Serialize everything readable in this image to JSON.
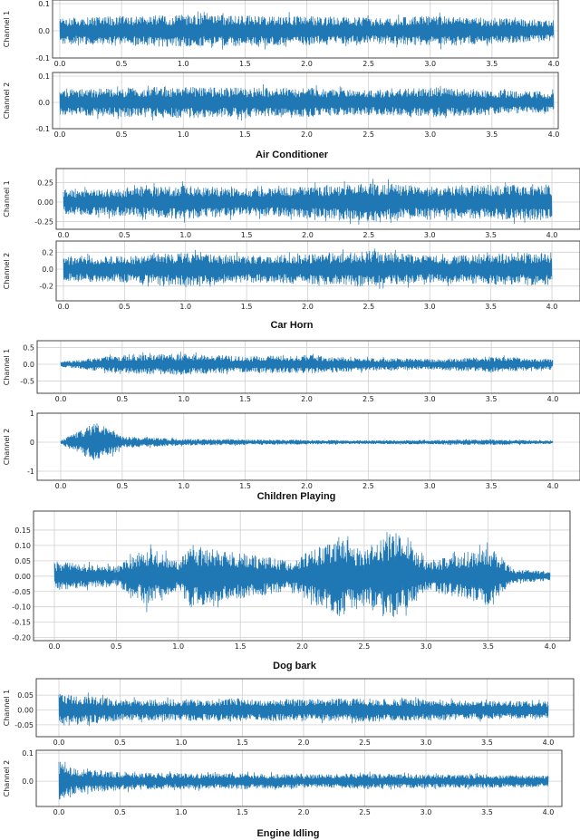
{
  "chart_data": [
    {
      "type": "line",
      "xlim": [
        0,
        4.0
      ],
      "ylim": [
        -0.1,
        0.1
      ],
      "grid": true,
      "ylabel": "Channel 1",
      "yticks": [
        -0.1,
        0.0,
        0.1
      ],
      "yticklabels": [
        "-0.1",
        "0.0",
        "0.1"
      ],
      "xticks": [
        0.0,
        0.5,
        1.0,
        1.5,
        2.0,
        2.5,
        3.0,
        3.5,
        4.0
      ],
      "xticklabels": [
        "0.0",
        "0.5",
        "1.0",
        "1.5",
        "2.0",
        "2.5",
        "3.0",
        "3.5",
        "4.0"
      ],
      "series": [
        {
          "envelope_x": [
            0,
            0.5,
            1.0,
            1.5,
            2.0,
            2.5,
            3.0,
            3.5,
            4.0
          ],
          "envelope_y": [
            0.06,
            0.07,
            0.075,
            0.07,
            0.07,
            0.06,
            0.07,
            0.06,
            0.05
          ]
        }
      ]
    },
    {
      "type": "line",
      "xlim": [
        0,
        4.0
      ],
      "ylim": [
        -0.1,
        0.1
      ],
      "grid": true,
      "ylabel": "Channel 2",
      "yticks": [
        -0.1,
        0.0,
        0.1
      ],
      "yticklabels": [
        "-0.1",
        "0.0",
        "0.1"
      ],
      "xticks": [
        0.0,
        0.5,
        1.0,
        1.5,
        2.0,
        2.5,
        3.0,
        3.5,
        4.0
      ],
      "xticklabels": [
        "0.0",
        "0.5",
        "1.0",
        "1.5",
        "2.0",
        "2.5",
        "3.0",
        "3.5",
        "4.0"
      ],
      "series": [
        {
          "envelope_x": [
            0,
            0.5,
            1.0,
            1.5,
            2.0,
            2.5,
            3.0,
            3.5,
            4.0
          ],
          "envelope_y": [
            0.06,
            0.07,
            0.075,
            0.07,
            0.07,
            0.06,
            0.07,
            0.06,
            0.05
          ]
        }
      ]
    },
    {
      "type": "line",
      "xlim": [
        0,
        4.0
      ],
      "ylim": [
        -0.35,
        0.35
      ],
      "grid": true,
      "ylabel": "Channel 1",
      "yticks": [
        -0.25,
        0.0,
        0.25
      ],
      "yticklabels": [
        "-0.25",
        "0.00",
        "0.25"
      ],
      "xticks": [
        0.0,
        0.5,
        1.0,
        1.5,
        2.0,
        2.5,
        3.0,
        3.5,
        4.0
      ],
      "xticklabels": [
        "0.0",
        "0.5",
        "1.0",
        "1.5",
        "2.0",
        "2.5",
        "3.0",
        "3.5",
        "4.0"
      ],
      "series": [
        {
          "envelope_x": [
            0,
            0.5,
            1.0,
            1.5,
            2.0,
            2.5,
            3.0,
            3.5,
            4.0
          ],
          "envelope_y": [
            0.2,
            0.22,
            0.28,
            0.22,
            0.25,
            0.32,
            0.25,
            0.28,
            0.3
          ]
        }
      ]
    },
    {
      "type": "line",
      "xlim": [
        0,
        4.0
      ],
      "ylim": [
        -0.3,
        0.3
      ],
      "grid": true,
      "ylabel": "Channel 2",
      "yticks": [
        -0.2,
        0.0,
        0.2
      ],
      "yticklabels": [
        "-0.2",
        "0.0",
        "0.2"
      ],
      "xticks": [
        0.0,
        0.5,
        1.0,
        1.5,
        2.0,
        2.5,
        3.0,
        3.5,
        4.0
      ],
      "xticklabels": [
        "0.0",
        "0.5",
        "1.0",
        "1.5",
        "2.0",
        "2.5",
        "3.0",
        "3.5",
        "4.0"
      ],
      "series": [
        {
          "envelope_x": [
            0,
            0.5,
            1.0,
            1.5,
            2.0,
            2.5,
            3.0,
            3.5,
            4.0
          ],
          "envelope_y": [
            0.18,
            0.2,
            0.25,
            0.2,
            0.22,
            0.27,
            0.2,
            0.23,
            0.25
          ]
        }
      ]
    },
    {
      "type": "line",
      "xlim": [
        0,
        4.0
      ],
      "ylim": [
        -0.7,
        0.7
      ],
      "grid": true,
      "ylabel": "Channel 1",
      "yticks": [
        -0.5,
        0.0,
        0.5
      ],
      "yticklabels": [
        "-0.5",
        "0.0",
        "0.5"
      ],
      "xticks": [
        0.0,
        0.5,
        1.0,
        1.5,
        2.0,
        2.5,
        3.0,
        3.5,
        4.0
      ],
      "xticklabels": [
        "0.0",
        "0.5",
        "1.0",
        "1.5",
        "2.0",
        "2.5",
        "3.0",
        "3.5",
        "4.0"
      ],
      "series": [
        {
          "envelope_x": [
            0,
            0.5,
            1.0,
            1.5,
            2.0,
            2.5,
            3.0,
            3.5,
            4.0
          ],
          "envelope_y": [
            0.1,
            0.35,
            0.4,
            0.3,
            0.35,
            0.25,
            0.2,
            0.3,
            0.2
          ]
        }
      ]
    },
    {
      "type": "line",
      "xlim": [
        0,
        4.0
      ],
      "ylim": [
        -1.0,
        1.0
      ],
      "grid": true,
      "ylabel": "Channel 2",
      "yticks": [
        -1,
        0,
        1
      ],
      "yticklabels": [
        "-1",
        "0",
        "1"
      ],
      "xticks": [
        0.0,
        0.5,
        1.0,
        1.5,
        2.0,
        2.5,
        3.0,
        3.5,
        4.0
      ],
      "xticklabels": [
        "0.0",
        "0.5",
        "1.0",
        "1.5",
        "2.0",
        "2.5",
        "3.0",
        "3.5",
        "4.0"
      ],
      "series": [
        {
          "envelope_x": [
            0,
            0.3,
            0.5,
            1.0,
            1.5,
            2.0,
            2.5,
            3.0,
            3.5,
            4.0
          ],
          "envelope_y": [
            0.08,
            0.9,
            0.25,
            0.15,
            0.12,
            0.1,
            0.08,
            0.1,
            0.12,
            0.07
          ]
        }
      ]
    },
    {
      "type": "line",
      "xlim": [
        0,
        4.0
      ],
      "ylim": [
        -0.21,
        0.2
      ],
      "grid": true,
      "ylabel": "",
      "yticks": [
        -0.2,
        -0.15,
        -0.1,
        -0.05,
        0.0,
        0.05,
        0.1,
        0.15
      ],
      "yticklabels": [
        "-0.20",
        "-0.15",
        "-0.10",
        "-0.05",
        "0.00",
        "0.05",
        "0.10",
        "0.15"
      ],
      "xticks": [
        0.0,
        0.5,
        1.0,
        1.5,
        2.0,
        2.5,
        3.0,
        3.5,
        4.0
      ],
      "xticklabels": [
        "0.0",
        "0.5",
        "1.0",
        "1.5",
        "2.0",
        "2.5",
        "3.0",
        "3.5",
        "4.0"
      ],
      "series": [
        {
          "envelope_x": [
            0,
            0.5,
            0.75,
            1.0,
            1.1,
            1.4,
            1.6,
            1.9,
            2.3,
            2.5,
            2.6,
            2.75,
            3.0,
            3.3,
            3.5,
            3.7,
            4.0
          ],
          "envelope_y": [
            0.06,
            0.04,
            0.12,
            0.06,
            0.13,
            0.1,
            0.09,
            0.06,
            0.17,
            0.1,
            0.16,
            0.18,
            0.06,
            0.09,
            0.12,
            0.03,
            0.02
          ]
        }
      ]
    },
    {
      "type": "line",
      "xlim": [
        0,
        4.0
      ],
      "ylim": [
        -0.09,
        0.09
      ],
      "grid": true,
      "ylabel": "Channel 1",
      "yticks": [
        -0.05,
        0.0,
        0.05
      ],
      "yticklabels": [
        "-0.05",
        "0.00",
        "0.05"
      ],
      "xticks": [
        0.0,
        0.5,
        1.0,
        1.5,
        2.0,
        2.5,
        3.0,
        3.5,
        4.0
      ],
      "xticklabels": [
        "0.0",
        "0.5",
        "1.0",
        "1.5",
        "2.0",
        "2.5",
        "3.0",
        "3.5",
        "4.0"
      ],
      "series": [
        {
          "envelope_x": [
            0,
            0.5,
            1.0,
            1.5,
            2.0,
            2.5,
            3.0,
            3.5,
            4.0
          ],
          "envelope_y": [
            0.07,
            0.045,
            0.045,
            0.05,
            0.045,
            0.05,
            0.045,
            0.04,
            0.035
          ]
        }
      ]
    },
    {
      "type": "line",
      "xlim": [
        0,
        4.0
      ],
      "ylim": [
        -0.09,
        0.11
      ],
      "grid": true,
      "ylabel": "Channel 2",
      "yticks": [
        0.0,
        0.1
      ],
      "yticklabels": [
        "0.0",
        "0.1"
      ],
      "xticks": [
        0.0,
        0.5,
        1.0,
        1.5,
        2.0,
        2.5,
        3.0,
        3.5,
        4.0
      ],
      "xticklabels": [
        "0.0",
        "0.5",
        "1.0",
        "1.5",
        "2.0",
        "2.5",
        "3.0",
        "3.5",
        "4.0"
      ],
      "series": [
        {
          "envelope_x": [
            0,
            0.1,
            0.5,
            1.0,
            1.5,
            2.0,
            2.5,
            3.0,
            3.5,
            4.0
          ],
          "envelope_y": [
            0.09,
            0.06,
            0.04,
            0.035,
            0.035,
            0.03,
            0.035,
            0.03,
            0.03,
            0.025
          ]
        }
      ]
    }
  ],
  "captions": [
    "Air Conditioner",
    "Car Horn",
    "Children Playing",
    "Dog bark",
    "Engine Idling"
  ],
  "colors": {
    "line": "#1f77b4",
    "grid": "#d0d0d0",
    "axes": "#333333"
  }
}
